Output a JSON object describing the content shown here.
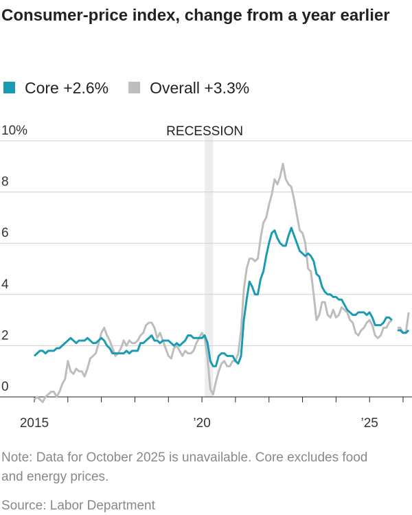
{
  "chart_data": {
    "type": "line",
    "title": "Consumer-price index, change from a year earlier",
    "note": "Note: Data for October 2025 is unavailable. Core excludes food and energy prices.",
    "source": "Source: Labor Department",
    "recession": {
      "label": "RECESSION",
      "start": 2020.083,
      "end": 2020.333
    },
    "xlim": [
      2015,
      2026
    ],
    "xticks": [
      {
        "value": 2015,
        "label": "2015"
      },
      {
        "value": 2020,
        "label": "’20"
      },
      {
        "value": 2025,
        "label": "’25"
      }
    ],
    "xminorticks": [
      2016,
      2017,
      2018,
      2019,
      2021,
      2022,
      2023,
      2024,
      2026
    ],
    "ylim": [
      0,
      10
    ],
    "yticks": [
      0,
      2,
      4,
      6,
      8,
      {
        "value": 10,
        "label": "10%"
      }
    ],
    "grid": true,
    "x": [
      2015,
      2015.083,
      2015.167,
      2015.25,
      2015.333,
      2015.417,
      2015.5,
      2015.583,
      2015.667,
      2015.75,
      2015.833,
      2015.917,
      2016,
      2016.083,
      2016.167,
      2016.25,
      2016.333,
      2016.417,
      2016.5,
      2016.583,
      2016.667,
      2016.75,
      2016.833,
      2016.917,
      2017,
      2017.083,
      2017.167,
      2017.25,
      2017.333,
      2017.417,
      2017.5,
      2017.583,
      2017.667,
      2017.75,
      2017.833,
      2017.917,
      2018,
      2018.083,
      2018.167,
      2018.25,
      2018.333,
      2018.417,
      2018.5,
      2018.583,
      2018.667,
      2018.75,
      2018.833,
      2018.917,
      2019,
      2019.083,
      2019.167,
      2019.25,
      2019.333,
      2019.417,
      2019.5,
      2019.583,
      2019.667,
      2019.75,
      2019.833,
      2019.917,
      2020,
      2020.083,
      2020.167,
      2020.25,
      2020.333,
      2020.417,
      2020.5,
      2020.583,
      2020.667,
      2020.75,
      2020.833,
      2020.917,
      2021,
      2021.083,
      2021.167,
      2021.25,
      2021.333,
      2021.417,
      2021.5,
      2021.583,
      2021.667,
      2021.75,
      2021.833,
      2021.917,
      2022,
      2022.083,
      2022.167,
      2022.25,
      2022.333,
      2022.417,
      2022.5,
      2022.583,
      2022.667,
      2022.75,
      2022.833,
      2022.917,
      2023,
      2023.083,
      2023.167,
      2023.25,
      2023.333,
      2023.417,
      2023.5,
      2023.583,
      2023.667,
      2023.75,
      2023.833,
      2023.917,
      2024,
      2024.083,
      2024.167,
      2024.25,
      2024.333,
      2024.417,
      2024.5,
      2024.583,
      2024.667,
      2024.75,
      2024.833,
      2024.917,
      2025,
      2025.083,
      2025.167,
      2025.25,
      2025.333,
      2025.417,
      2025.5,
      2025.583,
      2025.667,
      2025.75,
      2025.833,
      2025.917,
      2026,
      2026.083,
      2026.167
    ],
    "series": [
      {
        "name": "Overall +3.3%",
        "color": "#bdbdbd",
        "values": [
          -0.1,
          0.0,
          -0.1,
          -0.2,
          0.0,
          0.1,
          0.2,
          0.2,
          0.0,
          0.2,
          0.5,
          0.7,
          1.4,
          1.0,
          0.9,
          1.1,
          1.0,
          1.0,
          0.8,
          1.1,
          1.5,
          1.6,
          1.7,
          2.1,
          2.5,
          2.7,
          2.4,
          2.2,
          1.9,
          1.6,
          1.7,
          1.9,
          2.2,
          2.0,
          2.2,
          2.1,
          2.1,
          2.2,
          2.4,
          2.5,
          2.8,
          2.9,
          2.9,
          2.7,
          2.3,
          2.5,
          2.2,
          1.9,
          1.6,
          1.5,
          1.9,
          2.0,
          1.8,
          1.6,
          1.8,
          1.7,
          1.7,
          1.8,
          2.1,
          2.3,
          2.5,
          2.3,
          1.5,
          0.3,
          0.1,
          0.6,
          1.0,
          1.3,
          1.4,
          1.2,
          1.2,
          1.4,
          1.4,
          1.7,
          2.6,
          4.2,
          5.0,
          5.4,
          5.4,
          5.3,
          5.4,
          6.2,
          6.8,
          7.0,
          7.5,
          7.9,
          8.5,
          8.3,
          8.6,
          9.1,
          8.5,
          8.3,
          8.2,
          7.7,
          7.1,
          6.5,
          6.4,
          6.0,
          5.0,
          4.9,
          4.0,
          3.0,
          3.2,
          3.7,
          3.7,
          3.2,
          3.1,
          3.4,
          3.1,
          3.2,
          3.5,
          3.4,
          3.3,
          3.0,
          2.9,
          2.5,
          2.4,
          2.6,
          2.7,
          2.9,
          3.0,
          2.8,
          2.4,
          2.3,
          2.4,
          2.7,
          2.7,
          2.9,
          3.0,
          null,
          2.7,
          2.7,
          2.5,
          2.5,
          3.3
        ]
      },
      {
        "name": "Core +2.6%",
        "color": "#1a9bb3",
        "values": [
          1.6,
          1.7,
          1.8,
          1.8,
          1.7,
          1.8,
          1.8,
          1.8,
          1.9,
          1.9,
          2.0,
          2.1,
          2.2,
          2.3,
          2.2,
          2.1,
          2.2,
          2.2,
          2.2,
          2.3,
          2.2,
          2.1,
          2.1,
          2.2,
          2.3,
          2.2,
          2.0,
          1.9,
          1.7,
          1.7,
          1.7,
          1.7,
          1.7,
          1.8,
          1.7,
          1.8,
          1.8,
          1.8,
          2.1,
          2.1,
          2.2,
          2.3,
          2.4,
          2.2,
          2.2,
          2.1,
          2.2,
          2.2,
          2.2,
          2.1,
          2.0,
          2.1,
          2.0,
          2.1,
          2.2,
          2.4,
          2.4,
          2.3,
          2.3,
          2.3,
          2.3,
          2.4,
          2.1,
          1.4,
          1.2,
          1.2,
          1.6,
          1.7,
          1.7,
          1.6,
          1.6,
          1.6,
          1.4,
          1.3,
          1.6,
          3.0,
          3.8,
          4.5,
          4.3,
          4.0,
          4.0,
          4.6,
          4.9,
          5.5,
          6.0,
          6.4,
          6.5,
          6.2,
          6.0,
          5.9,
          5.9,
          6.3,
          6.6,
          6.3,
          6.0,
          5.7,
          5.6,
          5.5,
          5.6,
          5.5,
          5.3,
          4.8,
          4.7,
          4.3,
          4.1,
          4.0,
          4.0,
          3.9,
          3.9,
          3.8,
          3.8,
          3.6,
          3.4,
          3.3,
          3.2,
          3.2,
          3.3,
          3.3,
          3.3,
          3.2,
          3.3,
          3.1,
          2.8,
          2.8,
          2.8,
          2.9,
          3.1,
          3.1,
          3.0,
          null,
          2.6,
          2.6,
          2.5,
          2.5,
          2.6
        ]
      }
    ]
  }
}
